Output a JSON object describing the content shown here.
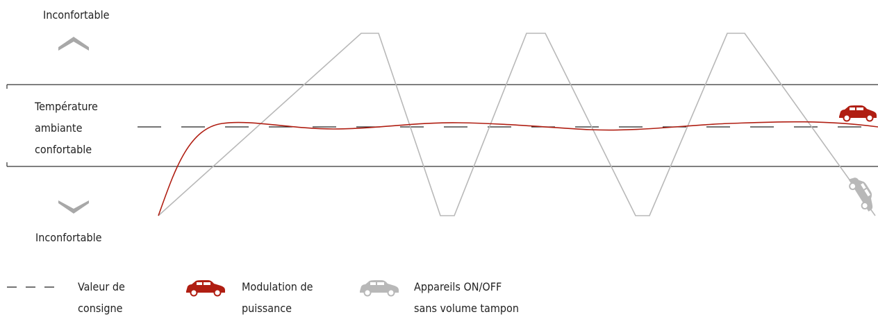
{
  "labels": {
    "top": "Inconfortable",
    "comfort_lines": [
      "Température",
      "ambiante",
      "confortable"
    ],
    "bottom": "Inconfortable"
  },
  "legend": [
    {
      "lines": [
        "Valeur de",
        "consigne"
      ],
      "icon": "dashed-line-icon"
    },
    {
      "lines": [
        "Modulation de",
        "puissance"
      ],
      "icon": "red-car-icon"
    },
    {
      "lines": [
        "Appareils ON/OFF",
        "sans volume tampon"
      ],
      "icon": "grey-car-icon"
    }
  ],
  "colors": {
    "modulation": "#b01e12",
    "onoff": "#b8b8b8",
    "band": "#333333",
    "arrow": "#a8a8a8",
    "setpoint": "#222222"
  }
}
